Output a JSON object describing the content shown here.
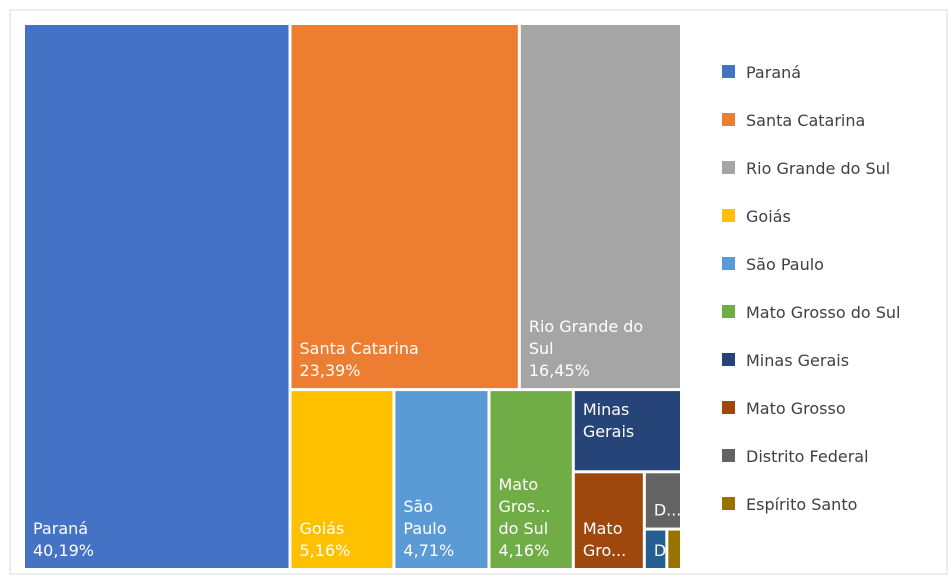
{
  "chart_data": {
    "type": "treemap",
    "series": [
      {
        "name": "Paraná",
        "color": "#4472c4",
        "value": 40.19,
        "value_label": "40,19%",
        "tile_label": [
          "Paraná"
        ]
      },
      {
        "name": "Santa Catarina",
        "color": "#ed7d31",
        "value": 23.39,
        "value_label": "23,39%",
        "tile_label": [
          "Santa Catarina"
        ]
      },
      {
        "name": "Rio Grande do Sul",
        "color": "#a5a5a5",
        "value": 16.45,
        "value_label": "16,45%",
        "tile_label": [
          "Rio Grande do",
          "Sul"
        ]
      },
      {
        "name": "Goiás",
        "color": "#ffc000",
        "value": 5.16,
        "value_label": "5,16%",
        "tile_label": [
          "Goiás"
        ]
      },
      {
        "name": "São Paulo",
        "color": "#5b9bd5",
        "value": 4.71,
        "value_label": "4,71%",
        "tile_label": [
          "São",
          "Paulo"
        ]
      },
      {
        "name": "Mato Grosso do Sul",
        "color": "#70ad47",
        "value": 4.16,
        "value_label": "4,16%",
        "tile_label": [
          "Mato",
          "Gros...",
          "do Sul"
        ]
      },
      {
        "name": "Minas Gerais",
        "color": "#264478",
        "value": 2.45,
        "tile_label": [
          "Minas",
          "Gerais"
        ]
      },
      {
        "name": "Mato Grosso",
        "color": "#9e480e",
        "value": 1.95,
        "tile_label": [
          "Mato",
          "Gro..."
        ]
      },
      {
        "name": "Distrito Federal",
        "color": "#636363",
        "value": 0.58,
        "tile_label": [
          "D..."
        ]
      },
      {
        "name": "Espírito Santo",
        "color": "#997300",
        "value": 0.15
      },
      {
        "name": null,
        "color": "#255e91",
        "value": 0.25,
        "tile_label": [
          "D.."
        ]
      }
    ]
  }
}
